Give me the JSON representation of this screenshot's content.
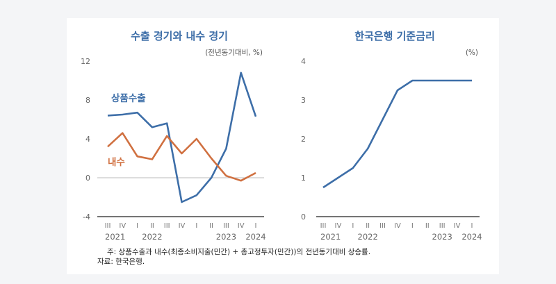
{
  "chart_data": [
    {
      "type": "line",
      "title": "수출 경기와 내수 경기",
      "unit": "(전년동기대비, %)",
      "categories": [
        "III",
        "IV",
        "I",
        "II",
        "III",
        "IV",
        "I",
        "II",
        "III",
        "IV",
        "I"
      ],
      "years": [
        {
          "label": "2021",
          "index": 0.5
        },
        {
          "label": "2022",
          "index": 3
        },
        {
          "label": "2023",
          "index": 8
        },
        {
          "label": "2024",
          "index": 10
        }
      ],
      "ylim": [
        -4,
        12
      ],
      "yticks": [
        "12",
        "8",
        "4",
        "0",
        "-4"
      ],
      "ytick_values": [
        12,
        8,
        4,
        0,
        -4
      ],
      "series": [
        {
          "name": "상품수출",
          "color": "#3d6ea8",
          "values": [
            6.4,
            6.5,
            6.7,
            5.2,
            5.6,
            -2.5,
            -1.8,
            0.0,
            3.0,
            10.8,
            6.3
          ]
        },
        {
          "name": "내수",
          "color": "#d07040",
          "values": [
            3.2,
            4.6,
            2.2,
            1.9,
            4.3,
            2.5,
            4.0,
            2.0,
            0.2,
            -0.3,
            0.5
          ]
        }
      ]
    },
    {
      "type": "line",
      "title": "한국은행 기준금리",
      "unit": "(%)",
      "categories": [
        "III",
        "IV",
        "I",
        "II",
        "III",
        "IV",
        "I",
        "II",
        "III",
        "IV",
        "I"
      ],
      "years": [
        {
          "label": "2021",
          "index": 0.5
        },
        {
          "label": "2022",
          "index": 3
        },
        {
          "label": "2023",
          "index": 8
        },
        {
          "label": "2024",
          "index": 10
        }
      ],
      "ylim": [
        0,
        4
      ],
      "yticks": [
        "4",
        "3",
        "2",
        "1",
        "0"
      ],
      "ytick_values": [
        4,
        3,
        2,
        1,
        0
      ],
      "series": [
        {
          "color": "#3d6ea8",
          "values": [
            0.75,
            1.0,
            1.25,
            1.75,
            2.5,
            3.25,
            3.5,
            3.5,
            3.5,
            3.5,
            3.5
          ]
        }
      ]
    }
  ],
  "notes": {
    "note": "주: 상품수출과 내수(최종소비지출(민간) + 총고정투자(민간))의 전년동기대비 상승률.",
    "source": "자료: 한국은행."
  }
}
